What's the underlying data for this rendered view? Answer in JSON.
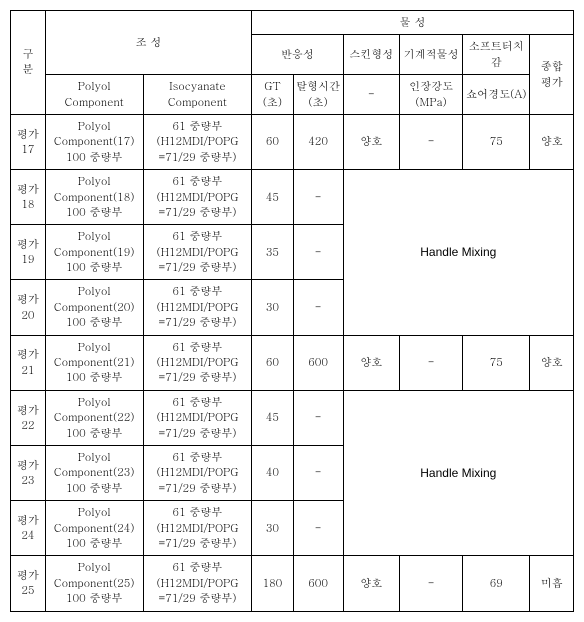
{
  "headers": {
    "rowlabel": "구\n분",
    "composition": "조   성",
    "property": "물    성",
    "polyol": "Polyol\nComponent",
    "iso": "Isocyanate\nComponent",
    "reactivity": "반응성",
    "skin": "스킨형성",
    "mech": "기계적물성",
    "soft": "소프트터치감",
    "overall": "종합\n평가",
    "gt": "GT\n(초)",
    "demold": "탈형시간\n(초)",
    "dash": "-",
    "tensile": "인장강도\n(MPa)",
    "shore": "쇼어경도(A)"
  },
  "iso_common": "61 중량부\n(H12MDI/POPG\n=71/29 중량부)",
  "rows": [
    {
      "id": "평가\n17",
      "poly": "Polyol\nComponent(17)\n100 중량부",
      "gt": "60",
      "demold": "420",
      "skin": "양호",
      "ten": "-",
      "shore": "75",
      "overall": "양호"
    },
    {
      "id": "평가\n18",
      "poly": "Polyol\nComponent(18)\n100 중량부",
      "gt": "45",
      "demold": "-"
    },
    {
      "id": "평가\n19",
      "poly": "Polyol\nComponent(19)\n100 중량부",
      "gt": "35",
      "demold": "-"
    },
    {
      "id": "평가\n20",
      "poly": "Polyol\nComponent(20)\n100 중량부",
      "gt": "30",
      "demold": "-"
    },
    {
      "id": "평가\n21",
      "poly": "Polyol\nComponent(21)\n100 중량부",
      "gt": "60",
      "demold": "600",
      "skin": "양호",
      "ten": "-",
      "shore": "75",
      "overall": "양호"
    },
    {
      "id": "평가\n22",
      "poly": "Polyol\nComponent(22)\n100 중량부",
      "gt": "45",
      "demold": "-"
    },
    {
      "id": "평가\n23",
      "poly": "Polyol\nComponent(23)\n100 중량부",
      "gt": "40",
      "demold": "-"
    },
    {
      "id": "평가\n24",
      "poly": "Polyol\nComponent(24)\n100 중량부",
      "gt": "30",
      "demold": "-"
    },
    {
      "id": "평가\n25",
      "poly": "Polyol\nComponent(25)\n100 중량부",
      "gt": "180",
      "demold": "600",
      "skin": "양호",
      "ten": "-",
      "shore": "69",
      "overall": "미흡"
    }
  ],
  "handle_mixing": "Handle Mixing"
}
